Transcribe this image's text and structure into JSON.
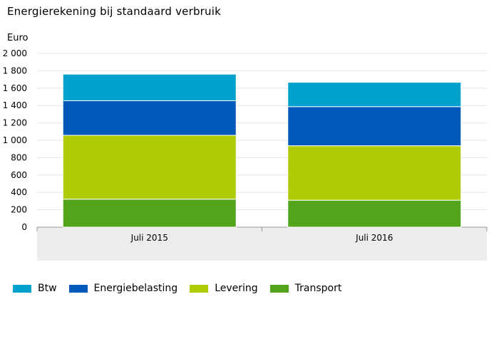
{
  "chart_data": {
    "type": "bar",
    "stacked": true,
    "title": "Energierekening bij standaard verbruik",
    "ylabel": "Euro",
    "xlabel": "",
    "categories": [
      "Juli 2015",
      "Juli 2016"
    ],
    "ylim": [
      0,
      2000
    ],
    "yticks": [
      "0",
      "200",
      "400",
      "600",
      "800",
      "1 000",
      "1 200",
      "1 400",
      "1 600",
      "1 800",
      "2 000"
    ],
    "grid": true,
    "legend_position": "bottom",
    "series": [
      {
        "name": "Transport",
        "color": "#52a51b",
        "values": [
          322,
          310
        ]
      },
      {
        "name": "Levering",
        "color": "#afcb05",
        "values": [
          735,
          627
        ]
      },
      {
        "name": "Energiebelasting",
        "color": "#0058b8",
        "values": [
          398,
          450
        ]
      },
      {
        "name": "Btw",
        "color": "#00a1cd",
        "values": [
          306,
          280
        ]
      }
    ],
    "legend_order": [
      "Btw",
      "Energiebelasting",
      "Levering",
      "Transport"
    ]
  }
}
